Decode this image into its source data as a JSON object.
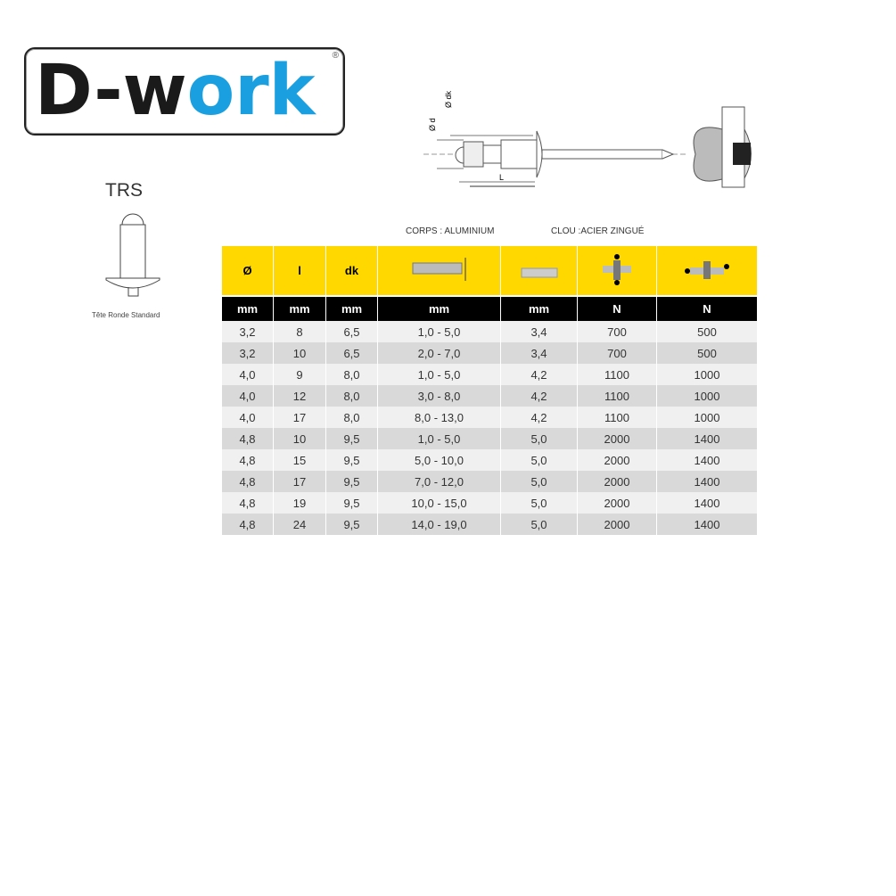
{
  "logo": {
    "text_dark": "D-w",
    "text_blue": "ork",
    "mark": "®",
    "colors": {
      "dark": "#1a1a1a",
      "blue": "#1aa0e0"
    }
  },
  "trs": {
    "title": "TRS",
    "caption": "Tête Ronde Standard"
  },
  "diagram": {
    "labels": [
      "Ø d",
      "Ø dk",
      "L"
    ]
  },
  "materials": {
    "body": "CORPS : ALUMINIUM",
    "mandrel": "CLOU :ACIER ZINGUÉ"
  },
  "table": {
    "header_color": "#ffd800",
    "headers": [
      "Ø",
      "l",
      "dk",
      "grip-range-icon",
      "mandrel-icon",
      "shear-force-icon",
      "tensile-force-icon"
    ],
    "header_text": [
      "Ø",
      "l",
      "dk"
    ],
    "units": [
      "mm",
      "mm",
      "mm",
      "mm",
      "mm",
      "N",
      "N"
    ],
    "rows": [
      [
        "3,2",
        "8",
        "6,5",
        "1,0 - 5,0",
        "3,4",
        "700",
        "500"
      ],
      [
        "3,2",
        "10",
        "6,5",
        "2,0 - 7,0",
        "3,4",
        "700",
        "500"
      ],
      [
        "4,0",
        "9",
        "8,0",
        "1,0 - 5,0",
        "4,2",
        "1100",
        "1000"
      ],
      [
        "4,0",
        "12",
        "8,0",
        "3,0 - 8,0",
        "4,2",
        "1100",
        "1000"
      ],
      [
        "4,0",
        "17",
        "8,0",
        "8,0 - 13,0",
        "4,2",
        "1100",
        "1000"
      ],
      [
        "4,8",
        "10",
        "9,5",
        "1,0 - 5,0",
        "5,0",
        "2000",
        "1400"
      ],
      [
        "4,8",
        "15",
        "9,5",
        "5,0 - 10,0",
        "5,0",
        "2000",
        "1400"
      ],
      [
        "4,8",
        "17",
        "9,5",
        "7,0 - 12,0",
        "5,0",
        "2000",
        "1400"
      ],
      [
        "4,8",
        "19",
        "9,5",
        "10,0 - 15,0",
        "5,0",
        "2000",
        "1400"
      ],
      [
        "4,8",
        "24",
        "9,5",
        "14,0 - 19,0",
        "5,0",
        "2000",
        "1400"
      ]
    ]
  }
}
